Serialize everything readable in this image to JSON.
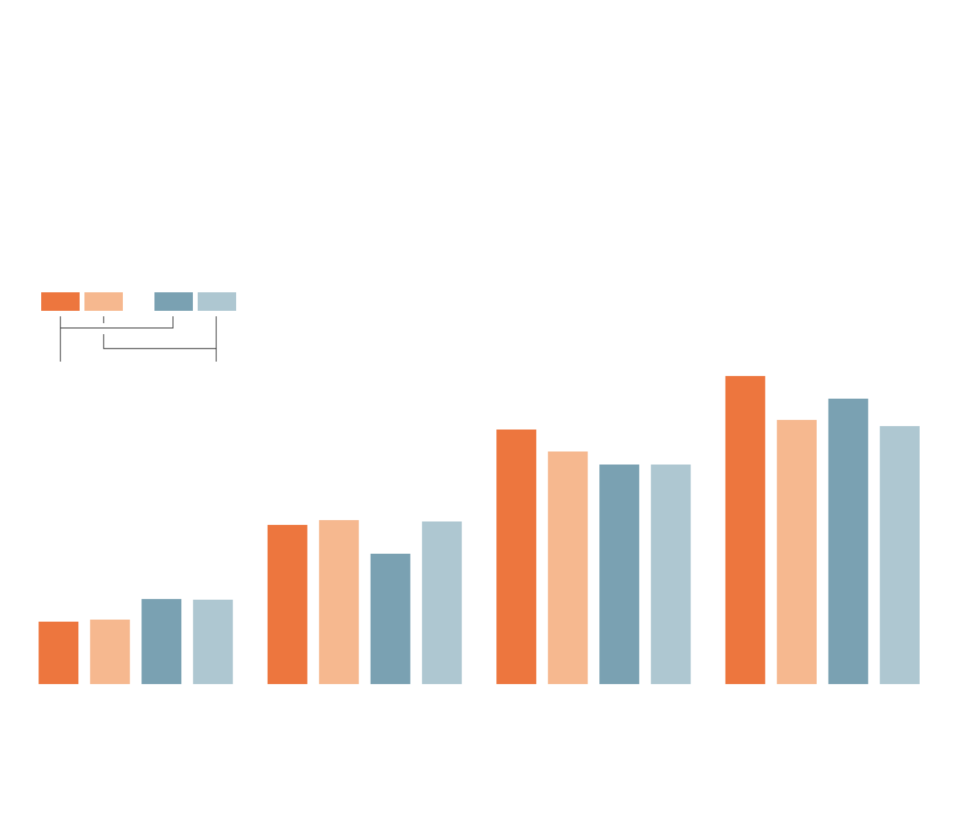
{
  "chart_data": {
    "type": "bar",
    "categories": [
      null,
      null,
      null,
      null
    ],
    "series": [
      {
        "color": "#ed763e",
        "values": [
          91,
          232,
          371,
          449
        ]
      },
      {
        "color": "#f6b88f",
        "values": [
          94,
          239,
          339,
          385
        ]
      },
      {
        "color": "#7aa1b2",
        "values": [
          124,
          190,
          320,
          416
        ]
      },
      {
        "color": "#aec7d1",
        "values": [
          123,
          237,
          320,
          376
        ]
      }
    ],
    "ylim": [
      0,
      500
    ]
  }
}
